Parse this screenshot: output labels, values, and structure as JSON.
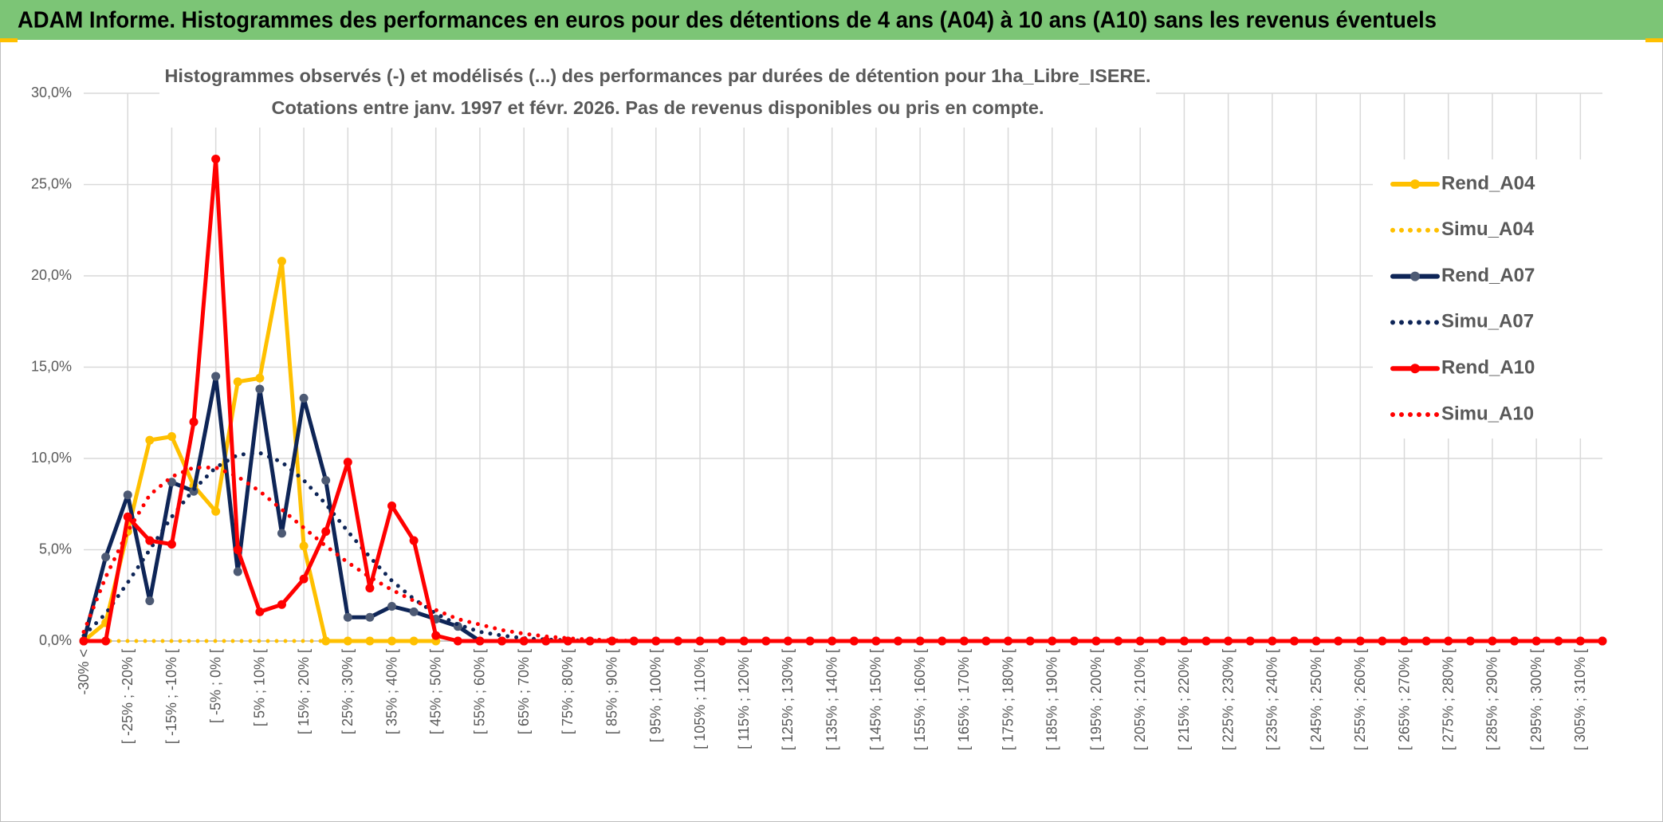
{
  "banner": "ADAM Informe. Histogrammes des performances en euros pour des détentions de 4 ans (A04) à 10 ans (A10) sans les revenus éventuels",
  "chart_data": {
    "type": "line",
    "title": "Histogrammes observés (-) et modélisés (...) des performances par durées de détention pour 1ha_Libre_ISERE.",
    "subtitle": "Cotations entre janv. 1997 et févr. 2026. Pas de revenus disponibles ou pris en compte.",
    "categories": [
      "-30% <",
      null,
      "[ -25% ; -20% [",
      null,
      "[ -15% ; -10% [",
      null,
      "[ -5% ; 0% [",
      null,
      "[ 5% ; 10% [",
      null,
      "[ 15% ; 20% [",
      null,
      "[ 25% ; 30% [",
      null,
      "[ 35% ; 40% [",
      null,
      "[ 45% ; 50% [",
      null,
      "[ 55% ; 60% [",
      null,
      "[ 65% ; 70% [",
      null,
      "[ 75% ; 80% [",
      null,
      "[ 85% ; 90% [",
      null,
      "[ 95% ; 100% [",
      null,
      "[ 105% ; 110% [",
      null,
      "[ 115% ; 120% [",
      null,
      "[ 125% ; 130% [",
      null,
      "[ 135% ; 140% [",
      null,
      "[ 145% ; 150% [",
      null,
      "[ 155% ; 160% [",
      null,
      "[ 165% ; 170% [",
      null,
      "[ 175% ; 180% [",
      null,
      "[ 185% ; 190% [",
      null,
      "[ 195% ; 200% [",
      null,
      "[ 205% ; 210% [",
      null,
      "[ 215% ; 220% [",
      null,
      "[ 225% ; 230% [",
      null,
      "[ 235% ; 240% [",
      null,
      "[ 245% ; 250% [",
      null,
      "[ 255% ; 260% [",
      null,
      "[ 265% ; 270% [",
      null,
      "[ 275% ; 280% [",
      null,
      "[ 285% ; 290% [",
      null,
      "[ 295% ; 300% [",
      null,
      "[ 305% ; 310% [",
      null
    ],
    "series": [
      {
        "name": "Rend_A04",
        "color": "#ffc000",
        "line_style": "solid",
        "values": [
          0,
          1.0,
          6.0,
          11.0,
          11.2,
          8.5,
          7.1,
          14.2,
          14.4,
          20.8,
          5.2,
          0,
          0,
          0,
          0,
          0,
          0,
          null,
          null,
          null,
          null,
          null,
          null,
          null,
          null,
          null,
          null,
          null,
          null,
          null,
          null,
          null,
          null,
          null,
          null,
          null,
          null,
          null,
          null,
          null,
          null,
          null,
          null,
          null,
          null,
          null,
          null,
          null,
          null,
          null,
          null,
          null,
          null,
          null,
          null,
          null,
          null,
          null,
          null,
          null,
          null,
          null,
          null,
          null,
          null,
          null,
          null,
          null,
          null,
          null
        ]
      },
      {
        "name": "Simu_A04",
        "color": "#ffc000",
        "line_style": "dotted",
        "values": [
          0,
          0,
          0,
          0,
          0,
          0,
          0,
          0,
          0,
          0,
          0,
          0,
          0,
          0,
          0,
          0,
          0,
          null,
          null,
          null,
          null,
          null,
          null,
          null,
          null,
          null,
          null,
          null,
          null,
          null,
          null,
          null,
          null,
          null,
          null,
          null,
          null,
          null,
          null,
          null,
          null,
          null,
          null,
          null,
          null,
          null,
          null,
          null,
          null,
          null,
          null,
          null,
          null,
          null,
          null,
          null,
          null,
          null,
          null,
          null,
          null,
          null,
          null,
          null,
          null,
          null,
          null,
          null,
          null,
          null
        ]
      },
      {
        "name": "Rend_A07",
        "color": "#0e2557",
        "marker_color": "#4d5a74",
        "line_style": "solid",
        "values": [
          0,
          4.6,
          8.0,
          2.2,
          8.7,
          8.2,
          14.5,
          3.8,
          13.8,
          5.9,
          13.3,
          8.8,
          1.3,
          1.3,
          1.9,
          1.6,
          1.2,
          0.8,
          0,
          0,
          0,
          0,
          0,
          0,
          0,
          0,
          0,
          0,
          0,
          0,
          0,
          0,
          0,
          0,
          0,
          0,
          0,
          0,
          0,
          0,
          0,
          0,
          0,
          0,
          0,
          0,
          0,
          0,
          0,
          0,
          0,
          0,
          0,
          0,
          0,
          0,
          0,
          0,
          0,
          0,
          0,
          0,
          0,
          0,
          0,
          0,
          0,
          0,
          0,
          0
        ]
      },
      {
        "name": "Simu_A07",
        "color": "#0e2557",
        "line_style": "dotted",
        "values": [
          0.3,
          1.5,
          3.2,
          5.0,
          6.8,
          8.3,
          9.5,
          10.2,
          10.3,
          9.8,
          8.8,
          7.5,
          6.0,
          4.6,
          3.3,
          2.3,
          1.5,
          0.9,
          0.5,
          0.3,
          0.15,
          0.08,
          0.04,
          0.02,
          0,
          0,
          0,
          0,
          0,
          0,
          0,
          0,
          0,
          0,
          0,
          0,
          0,
          0,
          0,
          0,
          0,
          0,
          0,
          0,
          0,
          0,
          0,
          0,
          0,
          0,
          0,
          0,
          0,
          0,
          0,
          0,
          0,
          0,
          0,
          0,
          0,
          0,
          0,
          0,
          0,
          0,
          0,
          0,
          0,
          0
        ]
      },
      {
        "name": "Rend_A10",
        "color": "#ff0000",
        "line_style": "solid",
        "values": [
          0,
          0,
          6.8,
          5.5,
          5.3,
          12.0,
          26.4,
          5.0,
          1.6,
          2.0,
          3.4,
          6.0,
          9.8,
          2.9,
          7.4,
          5.5,
          0.3,
          0,
          0,
          0,
          0,
          0,
          0,
          0,
          0,
          0,
          0,
          0,
          0,
          0,
          0,
          0,
          0,
          0,
          0,
          0,
          0,
          0,
          0,
          0,
          0,
          0,
          0,
          0,
          0,
          0,
          0,
          0,
          0,
          0,
          0,
          0,
          0,
          0,
          0,
          0,
          0,
          0,
          0,
          0,
          0,
          0,
          0,
          0,
          0,
          0,
          0,
          0,
          0,
          0
        ]
      },
      {
        "name": "Simu_A10",
        "color": "#ff0000",
        "line_style": "dotted",
        "values": [
          0.5,
          3.5,
          6.0,
          8.0,
          9.0,
          9.5,
          9.5,
          9.0,
          8.2,
          7.2,
          6.2,
          5.2,
          4.3,
          3.5,
          2.8,
          2.2,
          1.7,
          1.2,
          0.9,
          0.6,
          0.4,
          0.25,
          0.15,
          0.08,
          0.04,
          0,
          0,
          0,
          0,
          0,
          0,
          0,
          0,
          0,
          0,
          0,
          0,
          0,
          0,
          0,
          0,
          0,
          0,
          0,
          0,
          0,
          0,
          0,
          0,
          0,
          0,
          0,
          0,
          0,
          0,
          0,
          0,
          0,
          0,
          0,
          0,
          0,
          0,
          0,
          0,
          0,
          0,
          0,
          0,
          0
        ]
      }
    ],
    "ylim": [
      0,
      30
    ],
    "yticks": [
      {
        "value": 0,
        "label": "0,0%"
      },
      {
        "value": 5,
        "label": "5,0%"
      },
      {
        "value": 10,
        "label": "10,0%"
      },
      {
        "value": 15,
        "label": "15,0%"
      },
      {
        "value": 20,
        "label": "20,0%"
      },
      {
        "value": 25,
        "label": "25,0%"
      },
      {
        "value": 30,
        "label": "30,0%"
      }
    ],
    "grid": true,
    "legend": "right"
  }
}
